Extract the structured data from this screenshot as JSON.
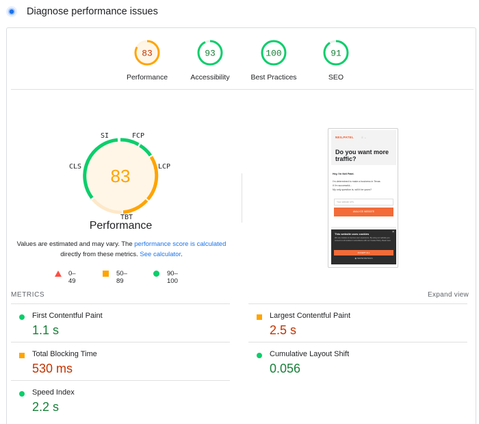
{
  "header": {
    "title": "Diagnose performance issues",
    "icon": "lighthouse-icon"
  },
  "categories": [
    {
      "label": "Performance",
      "score": "83",
      "color": "#ffa400",
      "ring_track": "#fff3e0",
      "fill": "#fff6e8",
      "text_color": "#c33300",
      "fraction": 0.83
    },
    {
      "label": "Accessibility",
      "score": "93",
      "color": "#0cce6b",
      "ring_track": "#e6f4ea",
      "fill": "#ffffff",
      "text_color": "#188038",
      "fraction": 0.93
    },
    {
      "label": "Best Practices",
      "score": "100",
      "color": "#0cce6b",
      "ring_track": "#e6f4ea",
      "fill": "#ffffff",
      "text_color": "#188038",
      "fraction": 1.0
    },
    {
      "label": "SEO",
      "score": "91",
      "color": "#0cce6b",
      "ring_track": "#e6f4ea",
      "fill": "#ffffff",
      "text_color": "#188038",
      "fraction": 0.91
    }
  ],
  "performance": {
    "score": "83",
    "title": "Performance",
    "labels": {
      "si": "SI",
      "fcp": "FCP",
      "lcp": "LCP",
      "tbt": "TBT",
      "cls": "CLS"
    },
    "disclaimer_prefix": "Values are estimated and may vary. The ",
    "disclaimer_link": "performance score is calculated",
    "disclaimer_mid": " directly from these metrics. ",
    "disclaimer_link2": "See calculator",
    "disclaimer_end": "."
  },
  "legend": [
    {
      "range": "0–49",
      "icon": "red-triangle-icon",
      "color": "#ff4e42"
    },
    {
      "range": "50–89",
      "icon": "orange-square-icon",
      "color": "#ffa400"
    },
    {
      "range": "90–100",
      "icon": "green-circle-icon",
      "color": "#0cce6b"
    }
  ],
  "screenshot": {
    "brand": "NEILPATEL",
    "menu": "≡ ⌄",
    "headline": "Do you want more traffic?",
    "line1": "Hey, I'm Neil Patel.",
    "line2": "I'm determined to make a business in Texas",
    "line3": "if I'm successful...",
    "line4": "My only question is, will it be yours?",
    "input_placeholder": "Your website URL",
    "button": "ANALYZE WEBSITE",
    "cookie_title": "This website uses cookies",
    "cookie_close": "×",
    "cookie_text": "We use cookies to improve user experience. By using our website you consent to all cookies in accordance with our Cookie Policy. Read more",
    "accept": "ACCEPT ALL",
    "decline": "◉ SHOW DETAILS"
  },
  "metrics": {
    "title": "METRICS",
    "expand": "Expand view",
    "items": [
      {
        "name": "First Contentful Paint",
        "value": "1.1 s",
        "status": "pass"
      },
      {
        "name": "Largest Contentful Paint",
        "value": "2.5 s",
        "status": "average"
      },
      {
        "name": "Total Blocking Time",
        "value": "530 ms",
        "status": "average"
      },
      {
        "name": "Cumulative Layout Shift",
        "value": "0.056",
        "status": "pass"
      },
      {
        "name": "Speed Index",
        "value": "2.2 s",
        "status": "pass"
      }
    ]
  },
  "colors": {
    "pass": "#0cce6b",
    "average": "#ffa400",
    "fail": "#ff4e42",
    "link": "#1a73e8"
  }
}
